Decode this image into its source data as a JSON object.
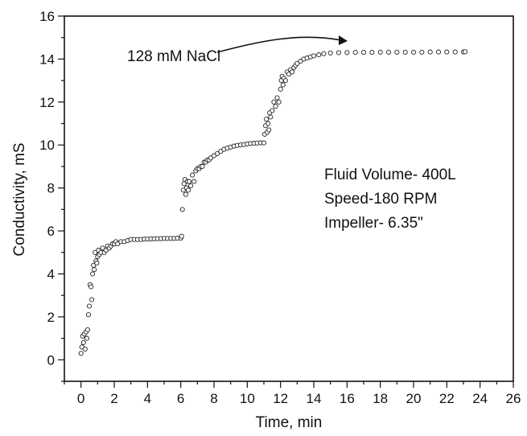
{
  "chart_data": {
    "type": "scatter",
    "title": "",
    "xlabel": "Time, min",
    "ylabel": "Conductivity, mS",
    "xlim": [
      -1,
      26
    ],
    "ylim": [
      -1,
      16
    ],
    "x_ticks": [
      0,
      2,
      4,
      6,
      8,
      10,
      12,
      14,
      16,
      18,
      20,
      22,
      24,
      26
    ],
    "y_ticks": [
      0,
      2,
      4,
      6,
      8,
      10,
      12,
      14,
      16
    ],
    "grid": false,
    "marker": "open-circle",
    "annotations": {
      "arrow_label": "128 mM NaCl",
      "lines": [
        "Fluid Volume- 400L",
        "Speed-180 RPM",
        "Impeller- 6.35\""
      ]
    },
    "series": [
      {
        "points": [
          [
            0.0,
            0.3
          ],
          [
            0.05,
            0.6
          ],
          [
            0.1,
            1.1
          ],
          [
            0.15,
            0.8
          ],
          [
            0.2,
            1.2
          ],
          [
            0.25,
            0.5
          ],
          [
            0.3,
            1.3
          ],
          [
            0.35,
            1.0
          ],
          [
            0.4,
            1.4
          ],
          [
            0.45,
            2.1
          ],
          [
            0.5,
            2.5
          ],
          [
            0.55,
            3.5
          ],
          [
            0.6,
            3.4
          ],
          [
            0.65,
            2.8
          ],
          [
            0.7,
            4.0
          ],
          [
            0.75,
            4.4
          ],
          [
            0.8,
            4.2
          ],
          [
            0.85,
            5.0
          ],
          [
            0.9,
            4.6
          ],
          [
            0.95,
            4.5
          ],
          [
            1.0,
            4.8
          ],
          [
            1.05,
            5.1
          ],
          [
            1.1,
            4.9
          ],
          [
            1.2,
            5.0
          ],
          [
            1.3,
            5.2
          ],
          [
            1.4,
            5.0
          ],
          [
            1.5,
            5.1
          ],
          [
            1.6,
            5.3
          ],
          [
            1.7,
            5.2
          ],
          [
            1.8,
            5.3
          ],
          [
            1.9,
            5.4
          ],
          [
            2.0,
            5.4
          ],
          [
            2.1,
            5.5
          ],
          [
            2.2,
            5.4
          ],
          [
            2.4,
            5.5
          ],
          [
            2.6,
            5.5
          ],
          [
            2.8,
            5.55
          ],
          [
            3.0,
            5.6
          ],
          [
            3.2,
            5.6
          ],
          [
            3.4,
            5.6
          ],
          [
            3.6,
            5.6
          ],
          [
            3.8,
            5.62
          ],
          [
            4.0,
            5.62
          ],
          [
            4.2,
            5.63
          ],
          [
            4.4,
            5.63
          ],
          [
            4.6,
            5.64
          ],
          [
            4.8,
            5.64
          ],
          [
            5.0,
            5.65
          ],
          [
            5.2,
            5.65
          ],
          [
            5.4,
            5.65
          ],
          [
            5.6,
            5.65
          ],
          [
            5.8,
            5.66
          ],
          [
            6.0,
            5.66
          ],
          [
            6.05,
            5.75
          ],
          [
            6.1,
            7.0
          ],
          [
            6.15,
            7.9
          ],
          [
            6.2,
            8.2
          ],
          [
            6.25,
            8.4
          ],
          [
            6.3,
            7.7
          ],
          [
            6.35,
            8.0
          ],
          [
            6.4,
            8.3
          ],
          [
            6.45,
            7.9
          ],
          [
            6.5,
            8.3
          ],
          [
            6.6,
            8.1
          ],
          [
            6.7,
            8.6
          ],
          [
            6.8,
            8.3
          ],
          [
            6.9,
            8.8
          ],
          [
            7.0,
            8.9
          ],
          [
            7.1,
            8.9
          ],
          [
            7.2,
            9.0
          ],
          [
            7.3,
            9.0
          ],
          [
            7.4,
            9.2
          ],
          [
            7.5,
            9.2
          ],
          [
            7.6,
            9.3
          ],
          [
            7.7,
            9.3
          ],
          [
            7.8,
            9.4
          ],
          [
            8.0,
            9.5
          ],
          [
            8.2,
            9.6
          ],
          [
            8.4,
            9.7
          ],
          [
            8.6,
            9.8
          ],
          [
            8.8,
            9.85
          ],
          [
            9.0,
            9.9
          ],
          [
            9.2,
            9.95
          ],
          [
            9.4,
            9.98
          ],
          [
            9.6,
            10.0
          ],
          [
            9.8,
            10.02
          ],
          [
            10.0,
            10.05
          ],
          [
            10.2,
            10.07
          ],
          [
            10.4,
            10.08
          ],
          [
            10.6,
            10.09
          ],
          [
            10.8,
            10.1
          ],
          [
            11.0,
            10.1
          ],
          [
            11.05,
            10.5
          ],
          [
            11.1,
            10.9
          ],
          [
            11.15,
            11.2
          ],
          [
            11.2,
            10.6
          ],
          [
            11.25,
            11.0
          ],
          [
            11.3,
            10.7
          ],
          [
            11.35,
            11.5
          ],
          [
            11.4,
            11.3
          ],
          [
            11.5,
            11.6
          ],
          [
            11.6,
            12.0
          ],
          [
            11.7,
            11.8
          ],
          [
            11.8,
            12.2
          ],
          [
            11.9,
            12.0
          ],
          [
            12.0,
            12.6
          ],
          [
            12.05,
            13.0
          ],
          [
            12.1,
            13.2
          ],
          [
            12.15,
            12.8
          ],
          [
            12.2,
            13.1
          ],
          [
            12.3,
            13.0
          ],
          [
            12.4,
            13.4
          ],
          [
            12.5,
            13.3
          ],
          [
            12.6,
            13.5
          ],
          [
            12.7,
            13.4
          ],
          [
            12.8,
            13.6
          ],
          [
            12.9,
            13.7
          ],
          [
            13.0,
            13.8
          ],
          [
            13.2,
            13.9
          ],
          [
            13.4,
            14.0
          ],
          [
            13.6,
            14.05
          ],
          [
            13.8,
            14.1
          ],
          [
            14.0,
            14.15
          ],
          [
            14.3,
            14.2
          ],
          [
            14.6,
            14.25
          ],
          [
            15.0,
            14.28
          ],
          [
            15.5,
            14.3
          ],
          [
            16.0,
            14.3
          ],
          [
            16.5,
            14.31
          ],
          [
            17.0,
            14.31
          ],
          [
            17.5,
            14.31
          ],
          [
            18.0,
            14.32
          ],
          [
            18.5,
            14.32
          ],
          [
            19.0,
            14.32
          ],
          [
            19.5,
            14.32
          ],
          [
            20.0,
            14.32
          ],
          [
            20.5,
            14.32
          ],
          [
            21.0,
            14.33
          ],
          [
            21.5,
            14.33
          ],
          [
            22.0,
            14.33
          ],
          [
            22.5,
            14.33
          ],
          [
            23.0,
            14.33
          ],
          [
            23.1,
            14.34
          ]
        ]
      }
    ]
  }
}
